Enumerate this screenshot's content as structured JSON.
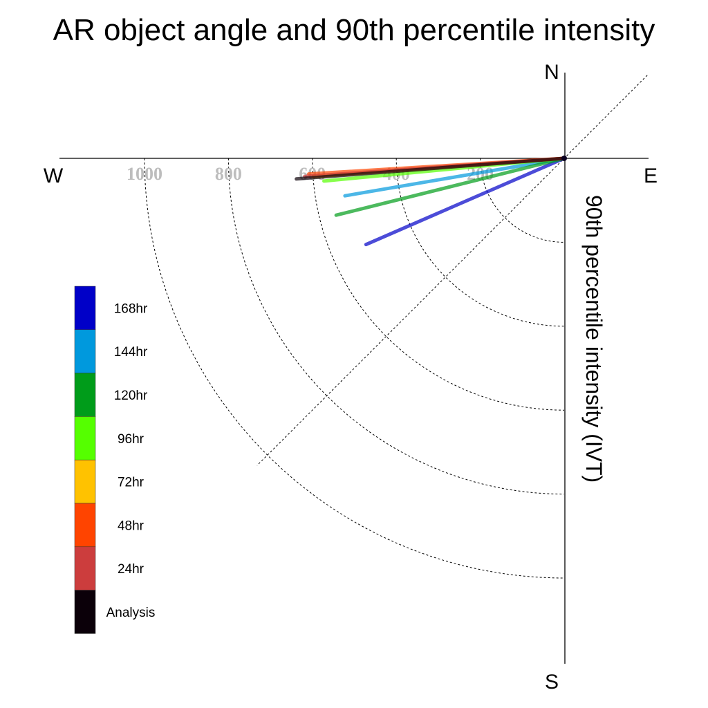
{
  "chart_data": {
    "type": "polar-vector",
    "title": "AR object angle and 90th percentile intensity",
    "radial_label": "90th percentile intensity (IVT)",
    "compass": {
      "north": "N",
      "south": "S",
      "east": "E",
      "west": "W"
    },
    "radial_ticks": [
      200,
      400,
      600,
      800,
      1000
    ],
    "rmax": 1150,
    "grid": true,
    "legend_position": "left",
    "series": [
      {
        "name": "Analysis",
        "color": "#0b0009",
        "angle_deg": 265.6,
        "intensity": 640
      },
      {
        "name": "24hr",
        "color": "#cc3d3d",
        "angle_deg": 266.0,
        "intensity": 620
      },
      {
        "name": "48hr",
        "color": "#ff4400",
        "angle_deg": 266.5,
        "intensity": 610
      },
      {
        "name": "72hr",
        "color": "#ffc200",
        "angle_deg": 265.8,
        "intensity": 600
      },
      {
        "name": "96hr",
        "color": "#55ff00",
        "angle_deg": 264.6,
        "intensity": 575
      },
      {
        "name": "120hr",
        "color": "#009c1a",
        "angle_deg": 256.0,
        "intensity": 560
      },
      {
        "name": "144hr",
        "color": "#0099dd",
        "angle_deg": 260.3,
        "intensity": 530
      },
      {
        "name": "168hr",
        "color": "#0000c8",
        "angle_deg": 246.5,
        "intensity": 515
      }
    ]
  }
}
